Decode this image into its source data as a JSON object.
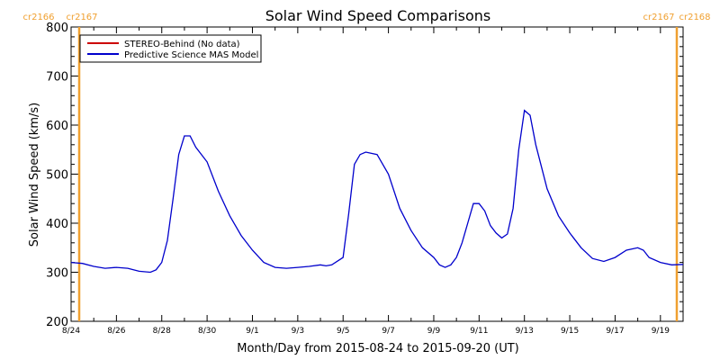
{
  "chart_data": {
    "type": "line",
    "title": "Solar Wind Speed Comparisons",
    "xlabel": "Month/Day from 2015-08-24 to 2015-09-20 (UT)",
    "ylabel": "Solar Wind Speed (km/s)",
    "ylim": [
      200,
      800
    ],
    "xlim": [
      "2015-08-24",
      "2015-09-20"
    ],
    "x_tick_labels": [
      "8/24",
      "8/26",
      "8/28",
      "8/30",
      "9/1",
      "9/3",
      "9/5",
      "9/7",
      "9/9",
      "9/11",
      "9/13",
      "9/15",
      "9/17",
      "9/19"
    ],
    "y_tick_labels": [
      "200",
      "300",
      "400",
      "500",
      "600",
      "700",
      "800"
    ],
    "grid": false,
    "legend": {
      "placement": "top-left",
      "entries": [
        {
          "label": "STEREO-Behind (No data)",
          "color": "#cc0000"
        },
        {
          "label": "Predictive Science MAS Model",
          "color": "#0000cc"
        }
      ]
    },
    "carrington_markers": [
      {
        "label_left": "cr2166",
        "label_right": "cr2167",
        "x": "2015-08-24",
        "side": "left",
        "color": "#f0a030"
      },
      {
        "label_left": "cr2167",
        "label_right": "cr2168",
        "x": "2015-09-20",
        "side": "right",
        "color": "#f0a030"
      }
    ],
    "series": [
      {
        "name": "Predictive Science MAS Model",
        "color": "#0000cc",
        "x": [
          "2015-08-24T00:00",
          "2015-08-24T12:00",
          "2015-08-25T00:00",
          "2015-08-25T12:00",
          "2015-08-26T00:00",
          "2015-08-26T12:00",
          "2015-08-27T00:00",
          "2015-08-27T12:00",
          "2015-08-27T18:00",
          "2015-08-28T00:00",
          "2015-08-28T06:00",
          "2015-08-28T12:00",
          "2015-08-28T18:00",
          "2015-08-29T00:00",
          "2015-08-29T06:00",
          "2015-08-29T12:00",
          "2015-08-30T00:00",
          "2015-08-30T12:00",
          "2015-08-31T00:00",
          "2015-08-31T12:00",
          "2015-09-01T00:00",
          "2015-09-01T12:00",
          "2015-09-02T00:00",
          "2015-09-02T12:00",
          "2015-09-03T00:00",
          "2015-09-03T12:00",
          "2015-09-04T00:00",
          "2015-09-04T06:00",
          "2015-09-04T12:00",
          "2015-09-05T00:00",
          "2015-09-05T06:00",
          "2015-09-05T12:00",
          "2015-09-05T18:00",
          "2015-09-06T00:00",
          "2015-09-06T12:00",
          "2015-09-07T00:00",
          "2015-09-07T12:00",
          "2015-09-08T00:00",
          "2015-09-08T12:00",
          "2015-09-09T00:00",
          "2015-09-09T06:00",
          "2015-09-09T12:00",
          "2015-09-09T18:00",
          "2015-09-10T00:00",
          "2015-09-10T06:00",
          "2015-09-10T12:00",
          "2015-09-10T18:00",
          "2015-09-11T00:00",
          "2015-09-11T06:00",
          "2015-09-11T12:00",
          "2015-09-11T18:00",
          "2015-09-12T00:00",
          "2015-09-12T06:00",
          "2015-09-12T12:00",
          "2015-09-12T18:00",
          "2015-09-13T00:00",
          "2015-09-13T06:00",
          "2015-09-13T12:00",
          "2015-09-14T00:00",
          "2015-09-14T12:00",
          "2015-09-15T00:00",
          "2015-09-15T12:00",
          "2015-09-16T00:00",
          "2015-09-16T12:00",
          "2015-09-17T00:00",
          "2015-09-17T12:00",
          "2015-09-18T00:00",
          "2015-09-18T06:00",
          "2015-09-18T12:00",
          "2015-09-19T00:00",
          "2015-09-19T12:00",
          "2015-09-20T00:00"
        ],
        "values": [
          320,
          318,
          312,
          308,
          310,
          308,
          302,
          300,
          305,
          320,
          365,
          450,
          540,
          578,
          578,
          555,
          525,
          465,
          415,
          375,
          345,
          320,
          310,
          308,
          310,
          312,
          315,
          313,
          315,
          330,
          420,
          520,
          540,
          545,
          540,
          500,
          430,
          385,
          350,
          330,
          315,
          310,
          315,
          330,
          360,
          400,
          440,
          440,
          425,
          395,
          380,
          370,
          378,
          430,
          550,
          630,
          620,
          560,
          470,
          415,
          380,
          350,
          328,
          322,
          330,
          345,
          350,
          345,
          330,
          320,
          315,
          316
        ]
      }
    ]
  }
}
